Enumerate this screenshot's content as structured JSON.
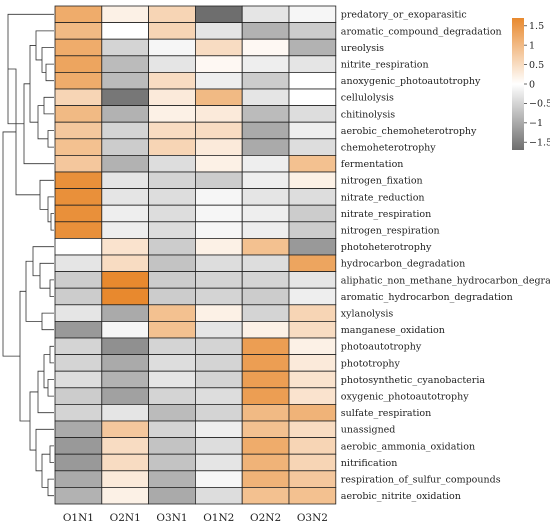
{
  "chart_data": {
    "type": "heatmap",
    "columns": [
      "O1N1",
      "O2N1",
      "O3N1",
      "O1N2",
      "O2N2",
      "O3N2"
    ],
    "rows": [
      "predatory_or_exoparasitic",
      "aromatic_compound_degradation",
      "ureolysis",
      "nitrite_respiration",
      "anoxygenic_photoautotrophy",
      "cellulolysis",
      "chitinolysis",
      "aerobic_chemoheterotrophy",
      "chemoheterotrophy",
      "fermentation",
      "nitrogen_fixation",
      "nitrate_reduction",
      "nitrate_respiration",
      "nitrogen_respiration",
      "photoheterotrophy",
      "hydrocarbon_degradation",
      "aliphatic_non_methane_hydrocarbon_degradation",
      "aromatic_hydrocarbon_degradation",
      "xylanolysis",
      "manganese_oxidation",
      "photoautotrophy",
      "phototrophy",
      "photosynthetic_cyanobacteria",
      "oxygenic_photoautotrophy",
      "sulfate_respiration",
      "unassigned",
      "aerobic_ammonia_oxidation",
      "nitrification",
      "respiration_of_sulfur_compounds",
      "aerobic_nitrite_oxidation"
    ],
    "values": [
      [
        1.2,
        0.2,
        0.6,
        -1.7,
        -0.3,
        -0.1
      ],
      [
        1.0,
        0.0,
        0.6,
        -0.3,
        -0.9,
        -0.6
      ],
      [
        1.2,
        -0.5,
        -0.1,
        0.5,
        0.1,
        -0.9
      ],
      [
        1.3,
        -0.8,
        -0.3,
        0.1,
        -0.2,
        -0.3
      ],
      [
        1.2,
        -0.8,
        0.5,
        -0.2,
        -0.6,
        0.0
      ],
      [
        0.6,
        -1.6,
        0.3,
        1.0,
        -0.3,
        0.0
      ],
      [
        1.0,
        -0.9,
        0.2,
        0.3,
        -0.8,
        -0.4
      ],
      [
        0.8,
        -0.5,
        0.5,
        0.5,
        -1.0,
        -0.2
      ],
      [
        0.9,
        -0.6,
        0.6,
        0.3,
        -1.0,
        -0.4
      ],
      [
        0.8,
        -0.9,
        -0.4,
        0.2,
        -0.2,
        0.9
      ],
      [
        1.6,
        -0.3,
        -0.5,
        -0.6,
        -0.2,
        0.2
      ],
      [
        1.6,
        -0.3,
        -0.4,
        -0.1,
        -0.3,
        -0.4
      ],
      [
        1.6,
        -0.2,
        -0.4,
        -0.1,
        -0.2,
        -0.6
      ],
      [
        1.6,
        -0.2,
        -0.4,
        -0.1,
        -0.2,
        -0.6
      ],
      [
        0.0,
        0.4,
        -0.6,
        0.2,
        0.9,
        -1.2
      ],
      [
        -0.3,
        0.5,
        -0.7,
        -0.4,
        -0.4,
        1.3
      ],
      [
        -0.6,
        1.9,
        -0.6,
        -0.5,
        -0.5,
        -0.3
      ],
      [
        -0.6,
        1.9,
        -0.6,
        -0.5,
        -0.6,
        -0.2
      ],
      [
        -0.3,
        -1.0,
        0.9,
        0.2,
        -0.5,
        0.6
      ],
      [
        -1.2,
        -0.1,
        0.9,
        -0.3,
        0.2,
        0.5
      ],
      [
        -0.5,
        -1.3,
        -0.5,
        -0.5,
        1.4,
        0.2
      ],
      [
        -0.5,
        -1.0,
        -0.4,
        -0.5,
        1.4,
        0.3
      ],
      [
        -0.4,
        -0.9,
        -0.3,
        -0.5,
        1.4,
        0.4
      ],
      [
        -0.6,
        -1.1,
        -0.5,
        -0.4,
        1.4,
        0.4
      ],
      [
        -0.5,
        -0.3,
        -0.8,
        -0.5,
        1.0,
        1.1
      ],
      [
        -1.0,
        0.8,
        -0.5,
        -0.2,
        0.9,
        0.5
      ],
      [
        -1.2,
        0.5,
        -0.7,
        -0.4,
        1.2,
        0.6
      ],
      [
        -1.2,
        0.5,
        -0.7,
        -0.3,
        1.1,
        0.6
      ],
      [
        -1.0,
        0.3,
        -0.9,
        -0.1,
        1.1,
        0.8
      ],
      [
        -0.9,
        0.2,
        -1.0,
        -0.4,
        0.9,
        0.9
      ]
    ],
    "color_scale": {
      "min": -1.7,
      "max": 1.7,
      "low_color": "#6e6e6e",
      "mid_color": "#ffffff",
      "high_color": "#e8892e"
    },
    "legend": {
      "ticks": [
        1.5,
        1,
        0.5,
        0,
        -0.5,
        -1,
        -1.5
      ],
      "tick_labels": [
        "1.5",
        "1",
        "0.5",
        "0",
        "−0.5",
        "−1",
        "−1.5"
      ],
      "placement": "top-right"
    },
    "row_dendrogram": true,
    "column_dendrogram": false
  }
}
